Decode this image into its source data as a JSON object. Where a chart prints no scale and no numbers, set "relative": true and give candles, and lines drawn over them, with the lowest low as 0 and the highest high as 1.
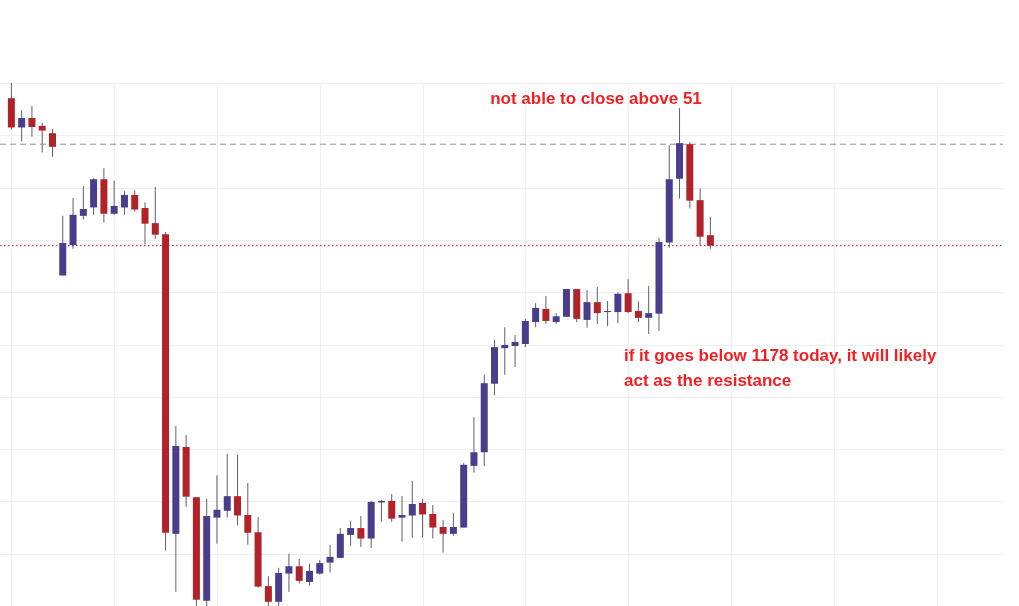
{
  "chart_data": {
    "type": "candlestick",
    "relative": true,
    "grid": true,
    "annotations": [
      "not able to close above 51",
      "if it goes below 1178 today, it will likely act as the resistance"
    ],
    "categories": [
      null,
      null,
      null,
      null,
      null,
      null,
      null,
      null,
      null,
      null,
      null,
      null,
      null,
      null,
      null,
      null,
      null,
      null,
      null,
      null,
      null,
      null,
      null,
      null,
      null,
      null,
      null,
      null,
      null,
      null,
      null,
      null,
      null,
      null,
      null,
      null,
      null,
      null,
      null,
      null,
      null,
      null,
      null,
      null,
      null,
      null,
      null,
      null,
      null,
      null,
      null,
      null,
      null,
      null,
      null,
      null,
      null,
      null,
      null,
      null,
      null,
      null,
      null,
      null,
      null,
      null,
      null,
      null,
      null
    ],
    "ohlc": [
      [
        0.971,
        1.0,
        0.911,
        0.915
      ],
      [
        0.915,
        0.948,
        0.888,
        0.933
      ],
      [
        0.933,
        0.956,
        0.897,
        0.916
      ],
      [
        0.918,
        0.924,
        0.867,
        0.909
      ],
      [
        0.904,
        0.912,
        0.859,
        0.878
      ],
      [
        0.632,
        0.746,
        0.632,
        0.694
      ],
      [
        0.69,
        0.78,
        0.683,
        0.748
      ],
      [
        0.746,
        0.803,
        0.739,
        0.759
      ],
      [
        0.762,
        0.818,
        0.748,
        0.816
      ],
      [
        0.816,
        0.837,
        0.733,
        0.75
      ],
      [
        0.75,
        0.813,
        0.748,
        0.765
      ],
      [
        0.762,
        0.793,
        0.748,
        0.786
      ],
      [
        0.786,
        0.795,
        0.754,
        0.758
      ],
      [
        0.761,
        0.772,
        0.691,
        0.731
      ],
      [
        0.732,
        0.801,
        0.702,
        0.71
      ],
      [
        0.711,
        0.715,
        0.106,
        0.14
      ],
      [
        0.138,
        0.344,
        0.027,
        0.306
      ],
      [
        0.304,
        0.327,
        0.19,
        0.209
      ],
      [
        0.208,
        0.208,
        0.0,
        0.012
      ],
      [
        0.01,
        0.205,
        0.0,
        0.172
      ],
      [
        0.169,
        0.25,
        0.119,
        0.184
      ],
      [
        0.182,
        0.291,
        0.169,
        0.21
      ],
      [
        0.21,
        0.289,
        0.154,
        0.173
      ],
      [
        0.174,
        0.235,
        0.117,
        0.14
      ],
      [
        0.141,
        0.17,
        0.035,
        0.037
      ],
      [
        0.038,
        0.057,
        0.0,
        0.008
      ],
      [
        0.008,
        0.073,
        0.0,
        0.063
      ],
      [
        0.062,
        0.1,
        0.027,
        0.076
      ],
      [
        0.076,
        0.09,
        0.043,
        0.048
      ],
      [
        0.046,
        0.081,
        0.039,
        0.067
      ],
      [
        0.062,
        0.088,
        0.06,
        0.082
      ],
      [
        0.083,
        0.117,
        0.064,
        0.094
      ],
      [
        0.092,
        0.149,
        0.092,
        0.138
      ],
      [
        0.136,
        0.163,
        0.115,
        0.149
      ],
      [
        0.149,
        0.172,
        0.113,
        0.129
      ],
      [
        0.129,
        0.201,
        0.111,
        0.199
      ],
      [
        0.198,
        0.203,
        0.161,
        0.201
      ],
      [
        0.201,
        0.214,
        0.161,
        0.167
      ],
      [
        0.169,
        0.21,
        0.123,
        0.174
      ],
      [
        0.173,
        0.239,
        0.131,
        0.195
      ],
      [
        0.197,
        0.205,
        0.131,
        0.175
      ],
      [
        0.176,
        0.193,
        0.129,
        0.15
      ],
      [
        0.151,
        0.164,
        0.102,
        0.138
      ],
      [
        0.138,
        0.178,
        0.134,
        0.151
      ],
      [
        0.15,
        0.273,
        0.15,
        0.27
      ],
      [
        0.268,
        0.361,
        0.255,
        0.294
      ],
      [
        0.294,
        0.442,
        0.268,
        0.426
      ],
      [
        0.425,
        0.509,
        0.403,
        0.495
      ],
      [
        0.493,
        0.533,
        0.442,
        0.499
      ],
      [
        0.497,
        0.518,
        0.457,
        0.505
      ],
      [
        0.501,
        0.549,
        0.495,
        0.545
      ],
      [
        0.543,
        0.579,
        0.533,
        0.57
      ],
      [
        0.568,
        0.593,
        0.539,
        0.545
      ],
      [
        0.543,
        0.56,
        0.539,
        0.554
      ],
      [
        0.553,
        0.606,
        0.553,
        0.606
      ],
      [
        0.606,
        0.606,
        0.543,
        0.549
      ],
      [
        0.547,
        0.604,
        0.532,
        0.581
      ],
      [
        0.581,
        0.61,
        0.539,
        0.56
      ],
      [
        0.562,
        0.583,
        0.535,
        0.564
      ],
      [
        0.562,
        0.6,
        0.541,
        0.597
      ],
      [
        0.598,
        0.625,
        0.56,
        0.562
      ],
      [
        0.564,
        0.583,
        0.543,
        0.551
      ],
      [
        0.551,
        0.612,
        0.52,
        0.56
      ],
      [
        0.559,
        0.704,
        0.526,
        0.696
      ],
      [
        0.695,
        0.881,
        0.685,
        0.816
      ],
      [
        0.817,
        0.952,
        0.779,
        0.885
      ],
      [
        0.883,
        0.887,
        0.76,
        0.775
      ],
      [
        0.776,
        0.798,
        0.689,
        0.706
      ],
      [
        0.709,
        0.744,
        0.683,
        0.689
      ]
    ],
    "colors": [
      "#b22229",
      "#4a3d8c",
      "#b22229",
      "#b22229",
      "#b22229",
      "#4a3d8c",
      "#4a3d8c",
      "#4a3d8c",
      "#4a3d8c",
      "#b22229",
      "#4a3d8c",
      "#4a3d8c",
      "#b22229",
      "#b22229",
      "#b22229",
      "#b22229",
      "#4a3d8c",
      "#b22229",
      "#b22229",
      "#4a3d8c",
      "#4a3d8c",
      "#4a3d8c",
      "#b22229",
      "#b22229",
      "#b22229",
      "#b22229",
      "#4a3d8c",
      "#4a3d8c",
      "#b22229",
      "#4a3d8c",
      "#4a3d8c",
      "#4a3d8c",
      "#4a3d8c",
      "#4a3d8c",
      "#b22229",
      "#4a3d8c",
      "#4a3d8c",
      "#b22229",
      "#4a3d8c",
      "#4a3d8c",
      "#b22229",
      "#b22229",
      "#b22229",
      "#4a3d8c",
      "#4a3d8c",
      "#4a3d8c",
      "#4a3d8c",
      "#4a3d8c",
      "#4a3d8c",
      "#4a3d8c",
      "#4a3d8c",
      "#4a3d8c",
      "#b22229",
      "#4a3d8c",
      "#4a3d8c",
      "#b22229",
      "#4a3d8c",
      "#b22229",
      "#4a3d8c",
      "#4a3d8c",
      "#b22229",
      "#b22229",
      "#4a3d8c",
      "#4a3d8c",
      "#4a3d8c",
      "#4a3d8c",
      "#b22229",
      "#b22229",
      "#b22229"
    ],
    "ref_lines": [
      {
        "axis": "y",
        "value": 0.883,
        "color": "#8a8d96",
        "line_style": "dashed"
      },
      {
        "axis": "y",
        "value": 0.689,
        "color": "#b22229",
        "line_style": "dotted"
      }
    ]
  }
}
